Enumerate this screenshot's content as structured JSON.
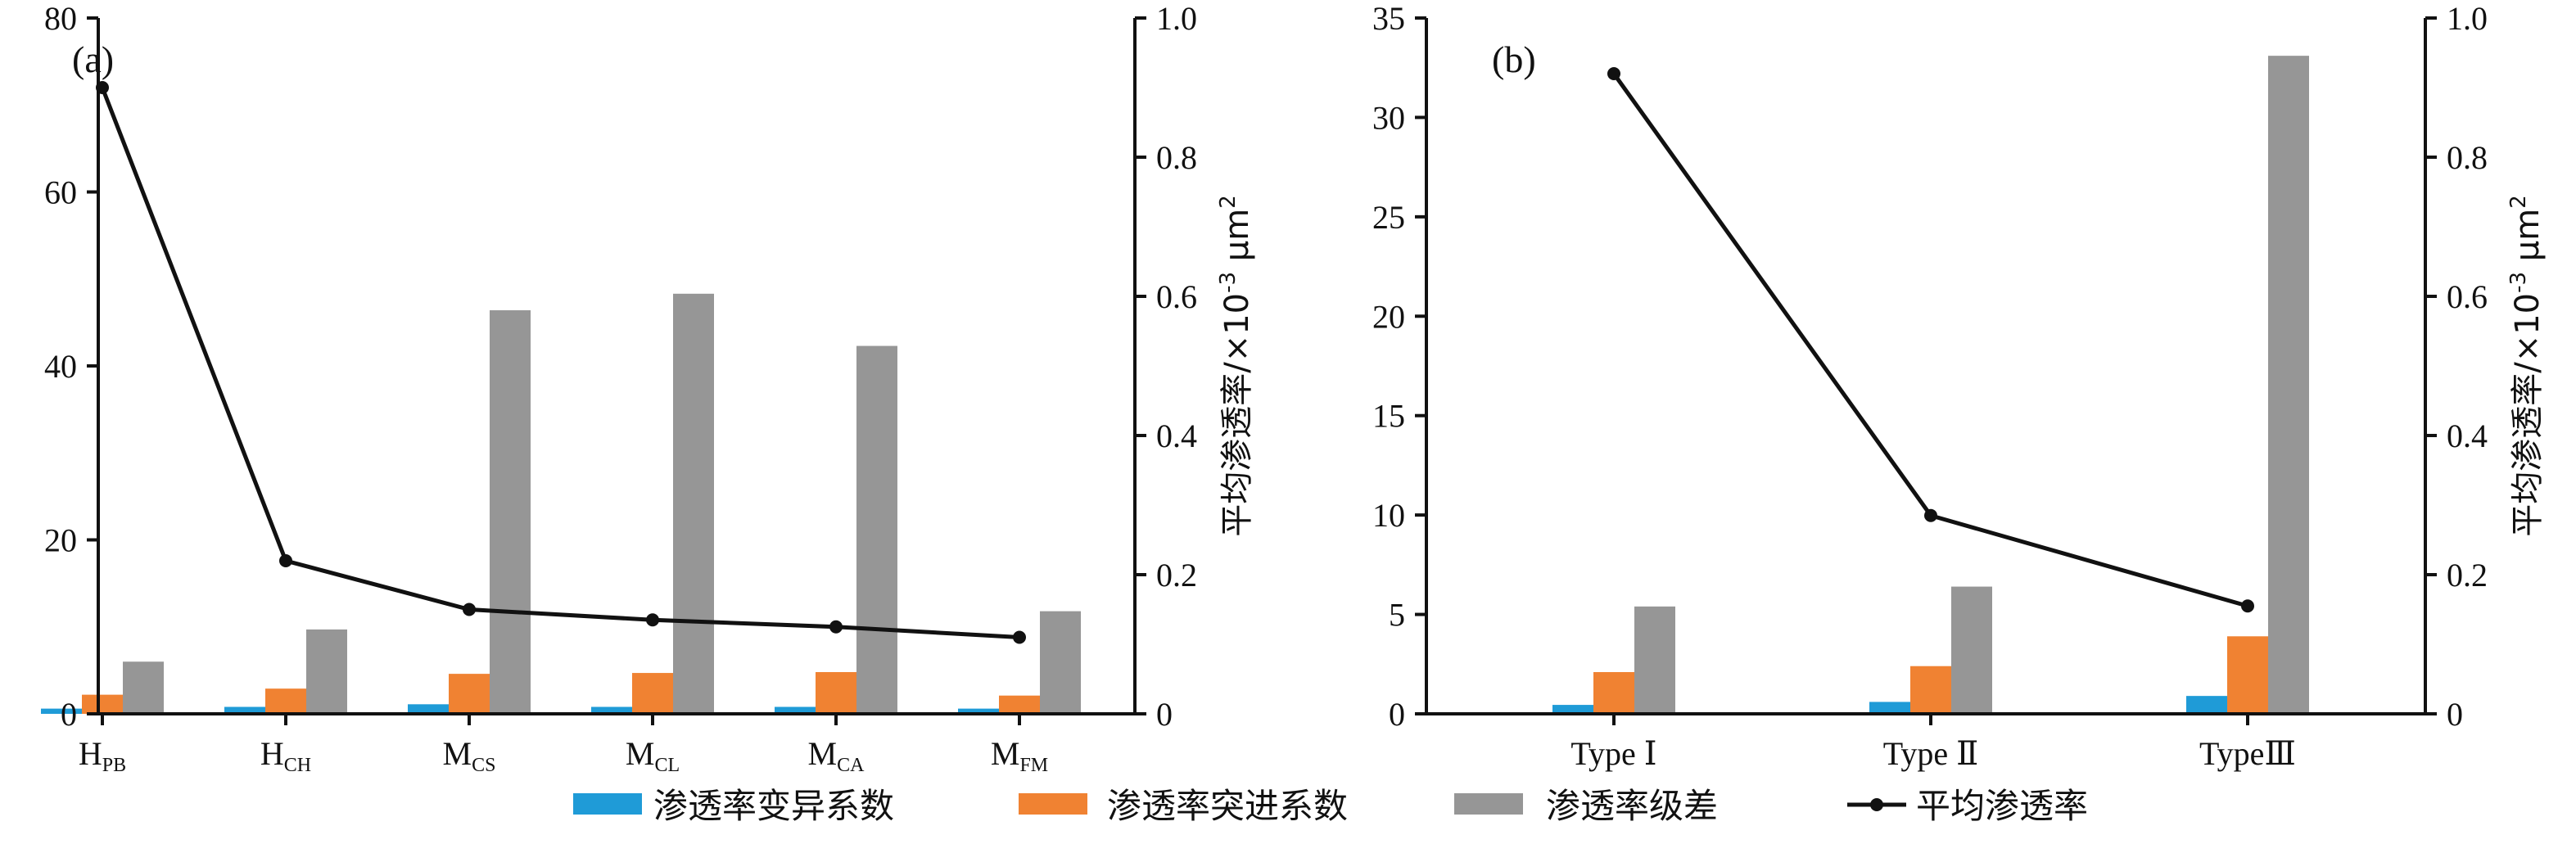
{
  "colors": {
    "cv": "#1f9bd7",
    "tk": "#f08232",
    "jc": "#969696",
    "mean": "#111111"
  },
  "legend": [
    {
      "key": "cv",
      "label": "渗透率变异系数",
      "kind": "bar"
    },
    {
      "key": "tk",
      "label": "渗透率突进系数",
      "kind": "bar"
    },
    {
      "key": "jc",
      "label": "渗透率级差",
      "kind": "bar"
    },
    {
      "key": "mean",
      "label": "平均渗透率",
      "kind": "line"
    }
  ],
  "chart_data": [
    {
      "type": "bar",
      "panel_label": "(a)",
      "categories": [
        {
          "main": "H",
          "sub": "PB"
        },
        {
          "main": "H",
          "sub": "CH"
        },
        {
          "main": "M",
          "sub": "CS"
        },
        {
          "main": "M",
          "sub": "CL"
        },
        {
          "main": "M",
          "sub": "CA"
        },
        {
          "main": "M",
          "sub": "FM"
        }
      ],
      "ylim_left": [
        0,
        80
      ],
      "yticks_left": [
        0,
        20,
        40,
        60,
        80
      ],
      "ylim_right": [
        0,
        1.0
      ],
      "yticks_right": [
        "0",
        "0.2",
        "0.4",
        "0.6",
        "0.8",
        "1.0"
      ],
      "right_ylabel": {
        "main": "平均渗透率/×10",
        "sup1": "-3",
        "unit": "μm",
        "sup2": "2"
      },
      "series": [
        {
          "key": "cv",
          "name": "渗透率变异系数",
          "values": [
            0.6,
            0.8,
            1.1,
            0.8,
            0.8,
            0.6
          ]
        },
        {
          "key": "tk",
          "name": "渗透率突进系数",
          "values": [
            2.2,
            2.9,
            4.6,
            4.7,
            4.8,
            2.1
          ]
        },
        {
          "key": "jc",
          "name": "渗透率级差",
          "values": [
            6.0,
            9.7,
            46.4,
            48.3,
            42.3,
            11.8
          ]
        }
      ],
      "line": {
        "key": "mean",
        "name": "平均渗透率",
        "values": [
          0.9,
          0.22,
          0.15,
          0.135,
          0.125,
          0.11
        ]
      }
    },
    {
      "type": "bar",
      "panel_label": "(b)",
      "categories": [
        {
          "main": "Type Ⅰ",
          "sub": ""
        },
        {
          "main": "Type  Ⅱ",
          "sub": ""
        },
        {
          "main": "TypeⅢ",
          "sub": ""
        }
      ],
      "ylim_left": [
        0,
        35
      ],
      "yticks_left": [
        0,
        5,
        10,
        15,
        20,
        25,
        30,
        35
      ],
      "ylim_right": [
        0,
        1.0
      ],
      "yticks_right": [
        "0",
        "0.2",
        "0.4",
        "0.6",
        "0.8",
        "1.0"
      ],
      "right_ylabel": {
        "main": "平均渗透率/×10",
        "sup1": "-3",
        "unit": "μm",
        "sup2": "2"
      },
      "series": [
        {
          "key": "cv",
          "name": "渗透率变异系数",
          "values": [
            0.45,
            0.6,
            0.9
          ]
        },
        {
          "key": "tk",
          "name": "渗透率突进系数",
          "values": [
            2.1,
            2.4,
            3.9
          ]
        },
        {
          "key": "jc",
          "name": "渗透率级差",
          "values": [
            5.4,
            6.4,
            33.1
          ]
        }
      ],
      "line": {
        "key": "mean",
        "name": "平均渗透率",
        "values": [
          0.92,
          0.285,
          0.155
        ]
      }
    }
  ]
}
